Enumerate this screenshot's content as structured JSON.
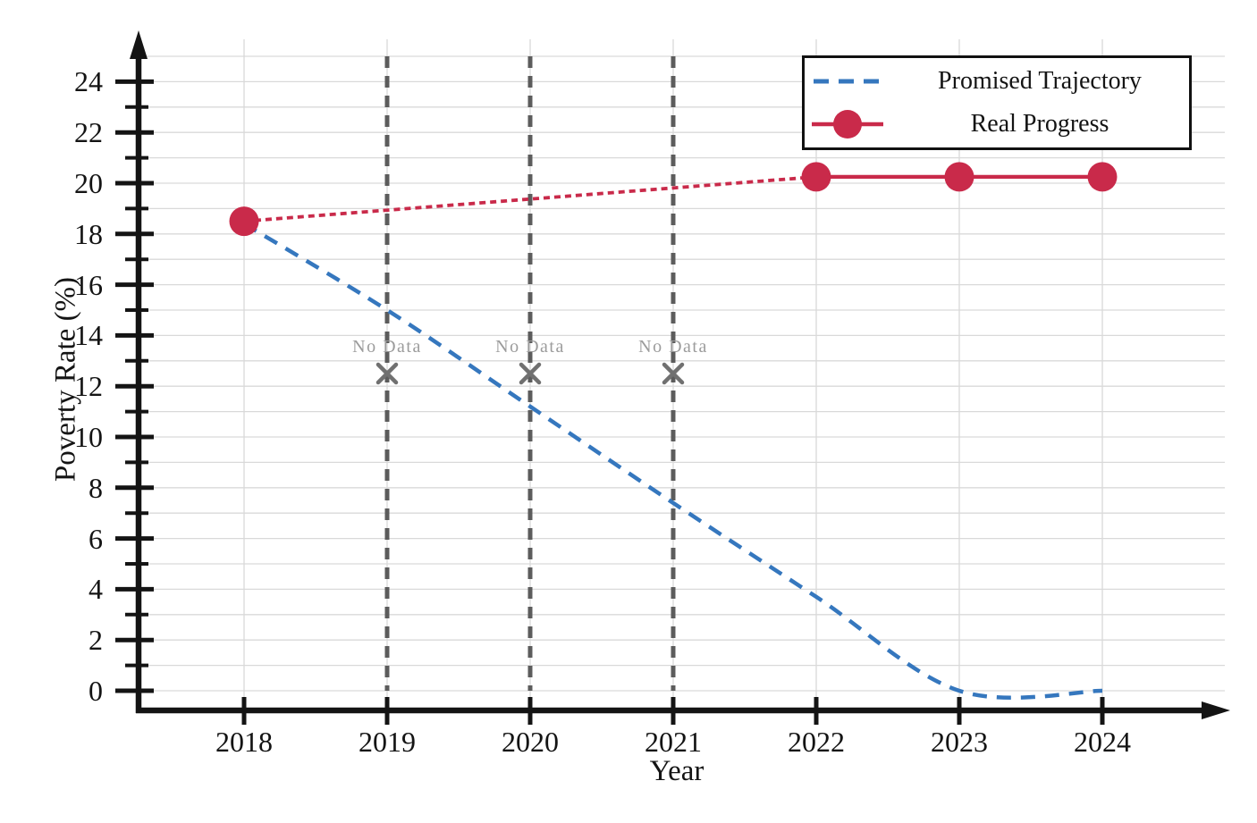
{
  "chart_data": {
    "type": "line",
    "title": "",
    "xlabel": "Year",
    "ylabel": "Poverty Rate (%)",
    "x": [
      2018,
      2019,
      2020,
      2021,
      2022,
      2023,
      2024
    ],
    "x_tick_labels": [
      "2018",
      "2019",
      "2020",
      "2021",
      "2022",
      "2023",
      "2024"
    ],
    "y_major_ticks": [
      0,
      2,
      4,
      6,
      8,
      10,
      12,
      14,
      16,
      18,
      20,
      22,
      24
    ],
    "y_minor_step": 1,
    "ylim": [
      -1,
      25.5
    ],
    "xlim": [
      2017.25,
      2024.9
    ],
    "grid": true,
    "legend_position": "top-right",
    "series": [
      {
        "name": "Promised Trajectory",
        "line_style": "dashed",
        "smooth": true,
        "color": "#3577be",
        "x": [
          2018,
          2019,
          2020,
          2021,
          2022,
          2023,
          2024
        ],
        "values": [
          18.4,
          15.0,
          11.2,
          7.4,
          3.7,
          0.0,
          0.0
        ]
      },
      {
        "name": "Real Progress",
        "line_style": "solid-with-markers",
        "color": "#c92a4a",
        "x": [
          2018,
          2022,
          2023,
          2024
        ],
        "values": [
          18.5,
          20.25,
          20.25,
          20.25
        ],
        "segments": [
          {
            "from": 2018,
            "to": 2022,
            "style": "dotted"
          },
          {
            "from": 2022,
            "to": 2024,
            "style": "solid"
          }
        ]
      }
    ],
    "annotations": [
      {
        "label": "No Data",
        "x": 2019,
        "marker_y": 12.5,
        "label_y": 13.35
      },
      {
        "label": "No Data",
        "x": 2020,
        "marker_y": 12.5,
        "label_y": 13.35
      },
      {
        "label": "No Data",
        "x": 2021,
        "marker_y": 12.5,
        "label_y": 13.35
      }
    ],
    "no_data_guide_top": 25,
    "no_data_guide_bottom": 0
  },
  "legend": {
    "items": [
      {
        "label": "Promised Trajectory"
      },
      {
        "label": "Real Progress"
      }
    ]
  },
  "colors": {
    "promised": "#3577be",
    "real": "#c92a4a",
    "grid": "#d9d9d9",
    "axis": "#141414",
    "no_data_line": "#5c5c5c",
    "no_data_marker": "#707070",
    "no_data_text": "#9c9c9c"
  }
}
